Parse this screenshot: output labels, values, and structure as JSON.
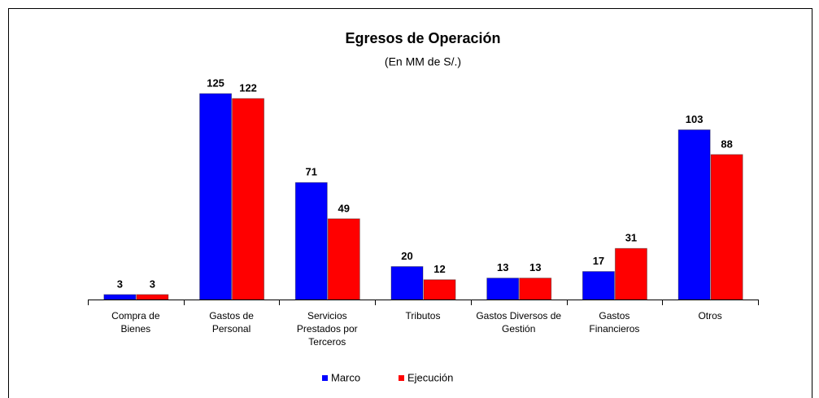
{
  "chart_data": {
    "type": "bar",
    "title": "Egresos de Operación",
    "subtitle": "(En MM de S/.)",
    "categories": [
      "Compra de Bienes",
      "Gastos de Personal",
      "Servicios Prestados por Terceros",
      "Tributos",
      "Gastos Diversos de Gestión",
      "Gastos Financieros",
      "Otros"
    ],
    "series": [
      {
        "name": "Marco",
        "color": "#0000ff",
        "values": [
          3,
          125,
          71,
          20,
          13,
          17,
          103
        ]
      },
      {
        "name": "Ejecución",
        "color": "#ff0000",
        "values": [
          3,
          122,
          49,
          12,
          13,
          31,
          88
        ]
      }
    ]
  }
}
